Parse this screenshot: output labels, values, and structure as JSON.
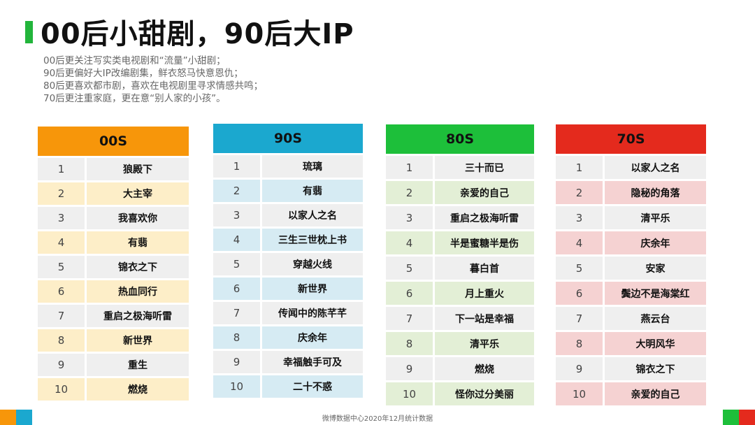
{
  "title": "00后小甜剧，90后大IP",
  "subtitle_lines": [
    "00后更关注写实类电视剧和“流量”小甜剧；",
    "90后更偏好大IP改编剧集，鲜衣怒马快意恩仇；",
    "80后更喜欢都市剧，喜欢在电视剧里寻求情感共鸣；",
    "70后更注重家庭，更在意“别人家的小孩”。"
  ],
  "tables": [
    {
      "header": "00S",
      "header_color": "#f7960a",
      "alt_color": "#fdeec8",
      "plain_color": "#efefef",
      "rows": [
        {
          "rank": "1",
          "name": "狼殿下"
        },
        {
          "rank": "2",
          "name": "大主宰"
        },
        {
          "rank": "3",
          "name": "我喜欢你"
        },
        {
          "rank": "4",
          "name": "有翡"
        },
        {
          "rank": "5",
          "name": "锦衣之下"
        },
        {
          "rank": "6",
          "name": "热血同行"
        },
        {
          "rank": "7",
          "name": "重启之极海听雷"
        },
        {
          "rank": "8",
          "name": "新世界"
        },
        {
          "rank": "9",
          "name": "重生"
        },
        {
          "rank": "10",
          "name": "燃烧"
        }
      ]
    },
    {
      "header": "90S",
      "header_color": "#1ba8cf",
      "alt_color": "#d6ebf3",
      "plain_color": "#efefef",
      "rows": [
        {
          "rank": "1",
          "name": "琉璃"
        },
        {
          "rank": "2",
          "name": "有翡"
        },
        {
          "rank": "3",
          "name": "以家人之名"
        },
        {
          "rank": "4",
          "name": "三生三世枕上书"
        },
        {
          "rank": "5",
          "name": "穿越火线"
        },
        {
          "rank": "6",
          "name": "新世界"
        },
        {
          "rank": "7",
          "name": "传闻中的陈芊芊"
        },
        {
          "rank": "8",
          "name": "庆余年"
        },
        {
          "rank": "9",
          "name": "幸福触手可及"
        },
        {
          "rank": "10",
          "name": "二十不惑"
        }
      ]
    },
    {
      "header": "80S",
      "header_color": "#1dbf3a",
      "alt_color": "#e3efd6",
      "plain_color": "#efefef",
      "rows": [
        {
          "rank": "1",
          "name": "三十而已"
        },
        {
          "rank": "2",
          "name": "亲爱的自己"
        },
        {
          "rank": "3",
          "name": "重启之极海听雷"
        },
        {
          "rank": "4",
          "name": "半是蜜糖半是伤"
        },
        {
          "rank": "5",
          "name": "暮白首"
        },
        {
          "rank": "6",
          "name": "月上重火"
        },
        {
          "rank": "7",
          "name": "下一站是幸福"
        },
        {
          "rank": "8",
          "name": "清平乐"
        },
        {
          "rank": "9",
          "name": "燃烧"
        },
        {
          "rank": "10",
          "name": "怪你过分美丽"
        }
      ]
    },
    {
      "header": "70S",
      "header_color": "#e42a1d",
      "alt_color": "#f5d2d2",
      "plain_color": "#efefef",
      "rows": [
        {
          "rank": "1",
          "name": "以家人之名"
        },
        {
          "rank": "2",
          "name": "隐秘的角落"
        },
        {
          "rank": "3",
          "name": "清平乐"
        },
        {
          "rank": "4",
          "name": "庆余年"
        },
        {
          "rank": "5",
          "name": "安家"
        },
        {
          "rank": "6",
          "name": "鬓边不是海棠红"
        },
        {
          "rank": "7",
          "name": "燕云台"
        },
        {
          "rank": "8",
          "name": "大明风华"
        },
        {
          "rank": "9",
          "name": "锦衣之下"
        },
        {
          "rank": "10",
          "name": "亲爱的自己"
        }
      ]
    }
  ],
  "footer": "微博数据中心2020年12月统计数据",
  "corner_colors": {
    "left": [
      "#f7960a",
      "#1ba8cf"
    ],
    "right": [
      "#1dbf3a",
      "#e42a1d"
    ]
  }
}
